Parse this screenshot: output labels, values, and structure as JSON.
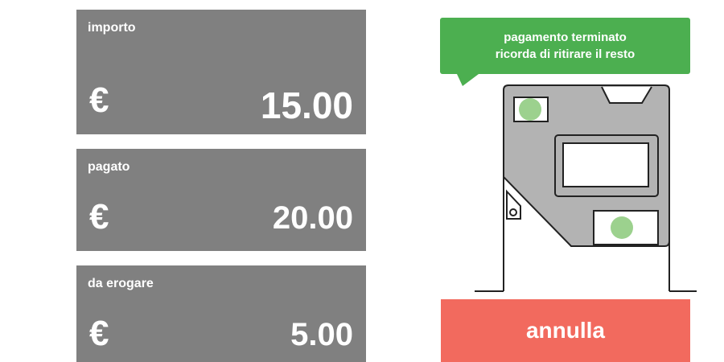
{
  "panels": [
    {
      "label": "importo",
      "currency": "€",
      "amount": "15.00"
    },
    {
      "label": "pagato",
      "currency": "€",
      "amount": "20.00"
    },
    {
      "label": "da erogare",
      "currency": "€",
      "amount": "5.00"
    }
  ],
  "message": {
    "lines": [
      "pagamento terminato",
      "ricorda di ritirare il resto"
    ]
  },
  "button": {
    "label": "annulla"
  }
}
